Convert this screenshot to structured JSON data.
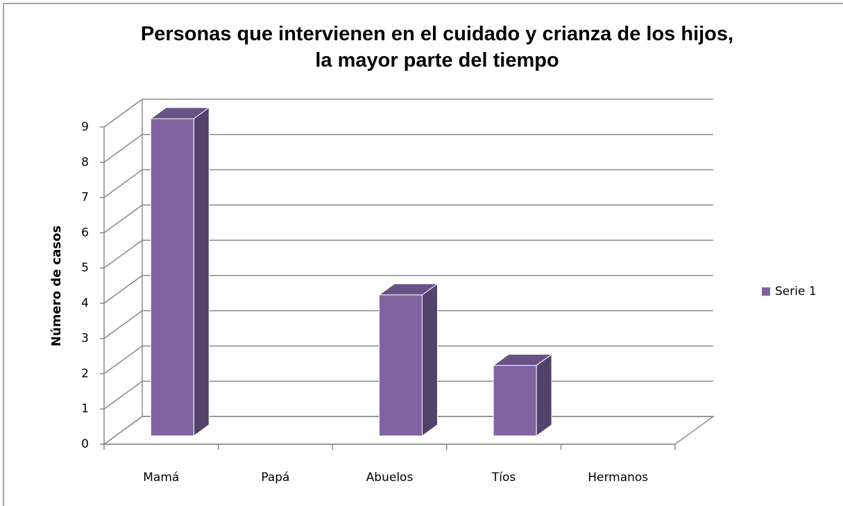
{
  "chart_data": {
    "type": "bar3d",
    "title": "Personas que intervienen en el cuidado y crianza de los hijos, la mayor parte del tiempo",
    "ylabel": "Número de casos",
    "categories": [
      "Mamá",
      "Papá",
      "Abuelos",
      "Tíos",
      "Hermanos"
    ],
    "series": [
      {
        "name": "Serie 1",
        "color": "#8064a2",
        "values": [
          9,
          0,
          4,
          2,
          0
        ]
      }
    ],
    "ylim": [
      0,
      9
    ],
    "yticks": [
      0,
      1,
      2,
      3,
      4,
      5,
      6,
      7,
      8,
      9
    ],
    "grid": true,
    "legend": "right"
  }
}
